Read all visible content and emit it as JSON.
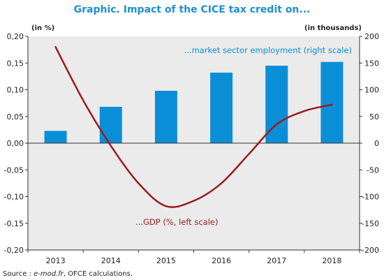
{
  "title": "Graphic. Impact of the CICE tax credit on...",
  "left_unit": "(in %)",
  "right_unit": "(in thousands)",
  "source": {
    "label": "Source : ",
    "italic": "e-mod.fr",
    "rest": ", OFCE calculations."
  },
  "colors": {
    "title": "#1f8fd6",
    "bars": "#0b8ed8",
    "line": "#9b1b1b",
    "plot_bg": "#ebebeb",
    "bar_annotation": "#0b8ed8",
    "line_annotation": "#9b1b1b"
  },
  "chart_data": {
    "type": "bar+line",
    "title": "Graphic. Impact of the CICE tax credit on...",
    "categories": [
      "2013",
      "2014",
      "2015",
      "2016",
      "2017",
      "2018"
    ],
    "left_axis": {
      "label": "(in %)",
      "range": [
        -0.2,
        0.2
      ],
      "ticks": [
        "0,20",
        "0,15",
        "0,10",
        "0,05",
        "0,00",
        "-0,05",
        "-0,10",
        "-0,15",
        "-0,20"
      ]
    },
    "right_axis": {
      "label": "(in thousands)",
      "range": [
        -200,
        200
      ],
      "ticks": [
        "200",
        "150",
        "100",
        "50",
        "0",
        "-50",
        "-100",
        "-150",
        "-200"
      ]
    },
    "series": [
      {
        "name": "...market sector employment (right scale)",
        "type": "bar",
        "axis": "right",
        "values": [
          23,
          68,
          98,
          132,
          145,
          152
        ]
      },
      {
        "name": "...GDP (%, left scale)",
        "type": "line",
        "axis": "left",
        "x": [
          2013,
          2013.5,
          2014,
          2014.5,
          2015,
          2015.5,
          2016,
          2016.5,
          2017,
          2017.5,
          2018
        ],
        "values": [
          0.18,
          0.08,
          -0.005,
          -0.075,
          -0.118,
          -0.108,
          -0.075,
          -0.02,
          0.035,
          0.06,
          0.072
        ]
      }
    ],
    "grid": false,
    "legend": "inline annotations"
  }
}
